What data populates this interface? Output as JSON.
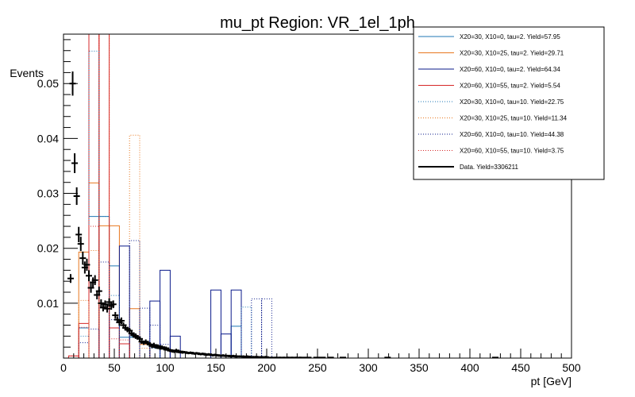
{
  "chart_data": {
    "type": "histogram",
    "title": "mu_pt Region: VR_1el_1ph",
    "xlabel": "pt [GeV]",
    "ylabel": "Events",
    "xlim": [
      0,
      500
    ],
    "ylim": [
      0,
      0.059
    ],
    "x_ticks": [
      0,
      50,
      100,
      150,
      200,
      250,
      300,
      350,
      400,
      450,
      500
    ],
    "x_tick_labels": [
      "0",
      "50",
      "100",
      "150",
      "200",
      "250",
      "300",
      "350",
      "400",
      "450",
      "500"
    ],
    "y_ticks": [
      0.01,
      0.02,
      0.03,
      0.04,
      0.05
    ],
    "y_tick_labels": [
      "0.01",
      "0.02",
      "0.03",
      "0.04",
      "0.05"
    ],
    "legend_position": "top-right",
    "series": [
      {
        "name": "X20=30, X10=0, tau=2. Yield=57.95",
        "color": "#1f77b4",
        "style": "solid",
        "bins": [
          [
            15,
            25,
            0.0055
          ],
          [
            25,
            35,
            0.0258
          ],
          [
            35,
            45,
            0.0258
          ],
          [
            45,
            55,
            0.0168
          ],
          [
            55,
            65,
            0.0038
          ],
          [
            65,
            75,
            0.0038
          ],
          [
            75,
            85,
            0.0028
          ],
          [
            165,
            175,
            0.0058
          ]
        ]
      },
      {
        "name": "X20=30, X10=25, tau=2. Yield=29.71",
        "color": "#e8771e",
        "style": "solid",
        "bins": [
          [
            15,
            25,
            0.0193
          ],
          [
            25,
            35,
            0.0319
          ],
          [
            35,
            45,
            0.0241
          ],
          [
            45,
            55,
            0.0241
          ],
          [
            65,
            75,
            0.009
          ],
          [
            75,
            85,
            0.0025
          ]
        ]
      },
      {
        "name": "X20=60, X10=0, tau=2. Yield=64.34",
        "color": "#0a1a8a",
        "style": "solid",
        "bins": [
          [
            55,
            65,
            0.0204
          ],
          [
            85,
            95,
            0.0104
          ],
          [
            95,
            105,
            0.016
          ],
          [
            105,
            115,
            0.004
          ],
          [
            145,
            155,
            0.0124
          ],
          [
            155,
            165,
            0.0044
          ],
          [
            165,
            175,
            0.0124
          ]
        ]
      },
      {
        "name": "X20=60, X10=55, tau=2. Yield=5.54",
        "color": "#d62728",
        "style": "solid",
        "bins": [
          [
            5,
            15,
            0.0004
          ],
          [
            15,
            25,
            0.0063
          ],
          [
            25,
            35,
            0.059
          ],
          [
            35,
            45,
            0.059
          ],
          [
            45,
            55,
            0.0055
          ],
          [
            55,
            65,
            0.0026
          ]
        ]
      },
      {
        "name": "X20=30, X10=0, tau=10. Yield=22.75",
        "color": "#1f77b4",
        "style": "dotted",
        "bins": [
          [
            15,
            25,
            0.004
          ],
          [
            25,
            35,
            0.0559
          ],
          [
            35,
            45,
            0.0258
          ],
          [
            45,
            55,
            0.0114
          ],
          [
            65,
            75,
            0.0039
          ],
          [
            85,
            95,
            0.0018
          ],
          [
            175,
            185,
            0.0093
          ]
        ]
      },
      {
        "name": "X20=30, X10=25, tau=10. Yield=11.34",
        "color": "#e8771e",
        "style": "dotted",
        "bins": [
          [
            15,
            25,
            0.0105
          ],
          [
            25,
            35,
            0.0196
          ],
          [
            35,
            45,
            0.059
          ],
          [
            65,
            75,
            0.0406
          ],
          [
            75,
            85,
            0.0018
          ]
        ]
      },
      {
        "name": "X20=60, X10=0, tau=10. Yield=44.38",
        "color": "#0a1a8a",
        "style": "dotted",
        "bins": [
          [
            15,
            25,
            0.0028
          ],
          [
            25,
            35,
            0.0053
          ],
          [
            35,
            45,
            0.0175
          ],
          [
            45,
            55,
            0.007
          ],
          [
            65,
            75,
            0.0214
          ],
          [
            75,
            85,
            0.0091
          ],
          [
            85,
            95,
            0.006
          ],
          [
            95,
            105,
            0.0025
          ],
          [
            185,
            195,
            0.0108
          ],
          [
            195,
            205,
            0.0108
          ]
        ]
      },
      {
        "name": "X20=60, X10=55, tau=10. Yield=3.75",
        "color": "#d62728",
        "style": "dotted",
        "bins": [
          [
            5,
            15,
            0.0004
          ],
          [
            15,
            25,
            0.0056
          ],
          [
            25,
            35,
            0.024
          ],
          [
            35,
            45,
            0.059
          ],
          [
            45,
            55,
            0.0035
          ],
          [
            55,
            65,
            0.0033
          ]
        ]
      }
    ],
    "data_series": {
      "name": "Data. Yield=3306211",
      "color": "#000000",
      "points": [
        [
          7,
          0.0145,
          0.0008
        ],
        [
          9,
          0.05,
          0.0022
        ],
        [
          11,
          0.0355,
          0.0018
        ],
        [
          13,
          0.0295,
          0.0016
        ],
        [
          15,
          0.0225,
          0.0014
        ],
        [
          17,
          0.0208,
          0.0013
        ],
        [
          19,
          0.0182,
          0.0012
        ],
        [
          21,
          0.0165,
          0.0011
        ],
        [
          23,
          0.017,
          0.0011
        ],
        [
          25,
          0.015,
          0.001
        ],
        [
          27,
          0.0128,
          0.0009
        ],
        [
          29,
          0.0138,
          0.0009
        ],
        [
          31,
          0.0142,
          0.0009
        ],
        [
          33,
          0.0115,
          0.0008
        ],
        [
          35,
          0.0122,
          0.0008
        ],
        [
          37,
          0.01,
          0.0007
        ],
        [
          39,
          0.0092,
          0.0007
        ],
        [
          41,
          0.0098,
          0.0007
        ],
        [
          43,
          0.009,
          0.0007
        ],
        [
          45,
          0.0102,
          0.0007
        ],
        [
          47,
          0.0095,
          0.0007
        ],
        [
          49,
          0.0098,
          0.0007
        ],
        [
          51,
          0.0078,
          0.0006
        ],
        [
          53,
          0.007,
          0.0006
        ],
        [
          55,
          0.0065,
          0.0006
        ],
        [
          57,
          0.0068,
          0.0006
        ],
        [
          59,
          0.006,
          0.0005
        ],
        [
          61,
          0.0055,
          0.0005
        ],
        [
          63,
          0.0052,
          0.0005
        ],
        [
          65,
          0.005,
          0.0005
        ],
        [
          67,
          0.0045,
          0.0005
        ],
        [
          69,
          0.0042,
          0.0005
        ],
        [
          71,
          0.004,
          0.0005
        ],
        [
          73,
          0.0038,
          0.0004
        ],
        [
          75,
          0.0035,
          0.0004
        ],
        [
          77,
          0.003,
          0.0004
        ],
        [
          79,
          0.0028,
          0.0004
        ],
        [
          81,
          0.003,
          0.0004
        ],
        [
          83,
          0.0027,
          0.0004
        ],
        [
          85,
          0.0025,
          0.0004
        ],
        [
          87,
          0.0022,
          0.0004
        ],
        [
          89,
          0.0024,
          0.0004
        ],
        [
          91,
          0.002,
          0.0003
        ],
        [
          93,
          0.0022,
          0.0003
        ],
        [
          95,
          0.0018,
          0.0003
        ],
        [
          97,
          0.002,
          0.0003
        ],
        [
          99,
          0.0017,
          0.0003
        ],
        [
          101,
          0.0018,
          0.0003
        ],
        [
          103,
          0.0015,
          0.0003
        ],
        [
          105,
          0.0014,
          0.0003
        ],
        [
          107,
          0.0013,
          0.0003
        ],
        [
          109,
          0.0012,
          0.0003
        ],
        [
          111,
          0.0014,
          0.0003
        ],
        [
          113,
          0.0011,
          0.0002
        ],
        [
          115,
          0.0012,
          0.0002
        ],
        [
          117,
          0.001,
          0.0002
        ],
        [
          119,
          0.0011,
          0.0002
        ],
        [
          121,
          0.001,
          0.0002
        ],
        [
          123,
          0.0009,
          0.0002
        ],
        [
          125,
          0.001,
          0.0002
        ],
        [
          127,
          0.0009,
          0.0002
        ],
        [
          129,
          0.0008,
          0.0002
        ],
        [
          131,
          0.0009,
          0.0002
        ],
        [
          133,
          0.0008,
          0.0002
        ],
        [
          135,
          0.0007,
          0.0002
        ],
        [
          137,
          0.0008,
          0.0002
        ],
        [
          139,
          0.0007,
          0.0002
        ],
        [
          141,
          0.0006,
          0.0002
        ],
        [
          143,
          0.0007,
          0.0002
        ],
        [
          145,
          0.0006,
          0.0002
        ],
        [
          147,
          0.0005,
          0.0002
        ],
        [
          149,
          0.0006,
          0.0002
        ],
        [
          151,
          0.0005,
          0.0002
        ],
        [
          153,
          0.0005,
          0.0002
        ],
        [
          155,
          0.0004,
          0.0002
        ],
        [
          157,
          0.0005,
          0.0002
        ],
        [
          159,
          0.0004,
          0.0002
        ],
        [
          161,
          0.0004,
          0.0002
        ],
        [
          163,
          0.0004,
          0.0002
        ],
        [
          165,
          0.0003,
          0.0002
        ],
        [
          167,
          0.0004,
          0.0002
        ],
        [
          169,
          0.0003,
          0.0002
        ],
        [
          171,
          0.0003,
          0.0002
        ],
        [
          173,
          0.0003,
          0.0002
        ],
        [
          175,
          0.0003,
          0.0002
        ],
        [
          177,
          0.0003,
          0.0002
        ],
        [
          179,
          0.0002,
          0.0002
        ],
        [
          181,
          0.0003,
          0.0002
        ],
        [
          183,
          0.0002,
          0.0002
        ],
        [
          185,
          0.0002,
          0.0002
        ],
        [
          187,
          0.0002,
          0.0002
        ],
        [
          189,
          0.0002,
          0.0002
        ],
        [
          191,
          0.0002,
          0.0002
        ],
        [
          195,
          0.0002,
          0.0002
        ],
        [
          199,
          0.0002,
          0.0002
        ],
        [
          203,
          0.0001,
          0.0001
        ],
        [
          207,
          0.0001,
          0.0001
        ],
        [
          211,
          0.0001,
          0.0001
        ],
        [
          215,
          0.0001,
          0.0001
        ],
        [
          219,
          0.0001,
          0.0001
        ],
        [
          223,
          0.0001,
          0.0001
        ],
        [
          227,
          0.0001,
          0.0001
        ],
        [
          231,
          0.0001,
          0.0001
        ],
        [
          235,
          0.0001,
          0.0001
        ],
        [
          241,
          0.0001,
          0.0001
        ],
        [
          249,
          0.0001,
          0.0001
        ],
        [
          255,
          0.0001,
          0.0001
        ],
        [
          263,
          0.0001,
          0.0001
        ],
        [
          275,
          0.0001,
          0.0001
        ],
        [
          319,
          0.0001,
          0.0001
        ],
        [
          425,
          0.0001,
          0.0001
        ]
      ]
    }
  }
}
